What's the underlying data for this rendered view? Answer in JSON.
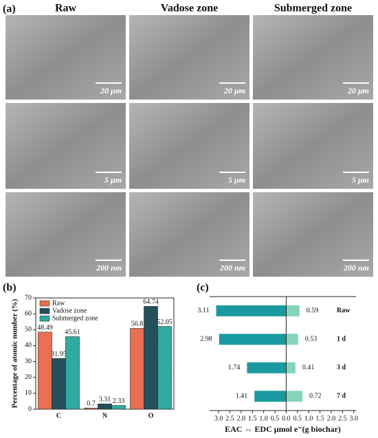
{
  "figure": {
    "panel": "(a)",
    "columns": [
      "Raw",
      "Vadose zone",
      "Submerged zone"
    ],
    "scale_bars": [
      [
        "20 μm",
        "20 μm",
        "20 μm"
      ],
      [
        "5 μm",
        "5 μm",
        "5 μm"
      ],
      [
        "200 nm",
        "200 nm",
        "200 nm"
      ]
    ]
  },
  "chart_data": [
    {
      "type": "bar",
      "panel": "(b)",
      "ylabel": "Percentage of atomic number (%)",
      "categories": [
        "C",
        "N",
        "O"
      ],
      "series": [
        {
          "name": "Raw",
          "color": "#e8694a",
          "hatch": true,
          "values": [
            48.49,
            0.7,
            50.8
          ]
        },
        {
          "name": "Vadose zone",
          "color": "#24505c",
          "hatch": false,
          "values": [
            31.95,
            3.31,
            64.74
          ]
        },
        {
          "name": "Submerged zone",
          "color": "#26a69a",
          "hatch": true,
          "values": [
            45.61,
            2.33,
            52.05
          ]
        }
      ],
      "ylim": [
        0,
        70
      ],
      "yticks": [
        0,
        10,
        20,
        30,
        40,
        50,
        60,
        70
      ],
      "legend": "top-left"
    },
    {
      "type": "hbar",
      "panel": "(c)",
      "xlabel": "EAC ⇔ EDC μmol e⁻(g biochar)",
      "categories": [
        "Raw",
        "1 d",
        "3 d",
        "7 d"
      ],
      "series": [
        {
          "name": "EAC",
          "color": "#1a9aa0",
          "values": [
            -3.11,
            -2.98,
            -1.74,
            -1.41
          ],
          "value_labels": [
            "3.11",
            "2.98",
            "1.74",
            "1.41"
          ]
        },
        {
          "name": "EDC",
          "color": "#86d4b8",
          "values": [
            0.59,
            0.53,
            0.41,
            0.72
          ]
        }
      ],
      "xlim": [
        -3.4,
        3.1
      ],
      "xticks": [
        {
          "value": -3.0,
          "label": "3.0"
        },
        {
          "value": -2.5,
          "label": "2.5"
        },
        {
          "value": -2.0,
          "label": "2.0"
        },
        {
          "value": -1.5,
          "label": "1.5"
        },
        {
          "value": -1.0,
          "label": "1.0"
        },
        {
          "value": -0.5,
          "label": "0.5"
        },
        {
          "value": 0.0,
          "label": "0.0"
        },
        {
          "value": 0.5,
          "label": "0.5"
        },
        {
          "value": 1.0,
          "label": "1.0"
        },
        {
          "value": 1.5,
          "label": "1.5"
        },
        {
          "value": 2.0,
          "label": "2.0"
        },
        {
          "value": 2.5,
          "label": "2.5"
        },
        {
          "value": 3.0,
          "label": "3.0"
        }
      ]
    }
  ]
}
